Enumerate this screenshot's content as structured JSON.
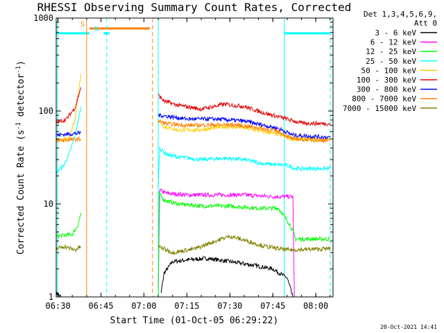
{
  "chart_data": {
    "type": "line",
    "title": "RHESSI Observing Summary Count Rates, Corrected",
    "xlabel": "Start Time (01-Oct-05 06:29:22)",
    "ylabel_parts": [
      "Corrected Count Rate (s",
      "-1",
      " detector",
      "-1",
      ")"
    ],
    "x_ticks": [
      "06:30",
      "06:45",
      "07:00",
      "07:15",
      "07:30",
      "07:45",
      "08:00"
    ],
    "y_ticks": [
      "1",
      "10",
      "100",
      "1000"
    ],
    "y_scale": "log",
    "ylim": [
      1,
      1000
    ],
    "xlim": [
      "06:29:22",
      "08:06"
    ],
    "legend_header": [
      "Det 1,3,4,5,6,9,",
      "Att 0"
    ],
    "legend_position": "right",
    "series": [
      {
        "name": "3 - 6 keV",
        "color": "#000000",
        "segments": [
          [
            [
              "06:29:30",
              1.1
            ],
            [
              "06:31",
              1.0
            ]
          ],
          [
            [
              "07:06",
              1.1
            ],
            [
              "07:07",
              1.8
            ],
            [
              "07:10",
              2.4
            ],
            [
              "07:15",
              2.5
            ],
            [
              "07:22",
              2.6
            ],
            [
              "07:30",
              2.4
            ],
            [
              "07:38",
              2.2
            ],
            [
              "07:45",
              2.0
            ],
            [
              "07:50",
              1.6
            ],
            [
              "07:52",
              1.0
            ]
          ]
        ]
      },
      {
        "name": "6 - 12 keV",
        "color": "#ff00ff",
        "segments": [
          [
            [
              "07:05",
              1.2
            ],
            [
              "07:05:30",
              14
            ],
            [
              "07:08",
              13
            ],
            [
              "07:15",
              12.5
            ],
            [
              "07:25",
              12.5
            ],
            [
              "07:35",
              12.5
            ],
            [
              "07:45",
              12
            ],
            [
              "07:52",
              12
            ],
            [
              "07:52:30",
              1.0
            ]
          ]
        ]
      },
      {
        "name": "12 - 25 keV",
        "color": "#00ff00",
        "segments": [
          [
            [
              "06:29:30",
              4.5
            ],
            [
              "06:35",
              4.7
            ],
            [
              "06:37",
              6.0
            ],
            [
              "06:38",
              8.0
            ]
          ],
          [
            [
              "07:05",
              1.0
            ],
            [
              "07:05:20",
              13
            ],
            [
              "07:07",
              11
            ],
            [
              "07:12",
              10
            ],
            [
              "07:20",
              9.5
            ],
            [
              "07:30",
              9.5
            ],
            [
              "07:40",
              9.0
            ],
            [
              "07:47",
              9.0
            ],
            [
              "07:51",
              6.0
            ],
            [
              "07:53",
              4.2
            ],
            [
              "08:05",
              4.2
            ]
          ]
        ]
      },
      {
        "name": "25 - 50 keV",
        "color": "#00ffff",
        "segments": [
          [
            [
              "06:29:30",
              22
            ],
            [
              "06:32",
              26
            ],
            [
              "06:34",
              35
            ],
            [
              "06:36",
              55
            ],
            [
              "06:38",
              110
            ]
          ],
          [
            [
              "07:05",
              15
            ],
            [
              "07:05:30",
              40
            ],
            [
              "07:08",
              34
            ],
            [
              "07:12",
              32
            ],
            [
              "07:20",
              30
            ],
            [
              "07:28",
              31
            ],
            [
              "07:35",
              30
            ],
            [
              "07:42",
              27
            ],
            [
              "07:50",
              26
            ],
            [
              "07:53",
              24
            ],
            [
              "08:05",
              24
            ]
          ]
        ]
      },
      {
        "name": "50 - 100 keV",
        "color": "#ffcc00",
        "segments": [
          [
            [
              "06:29:30",
              48
            ],
            [
              "06:34",
              50
            ],
            [
              "06:36",
              85
            ],
            [
              "06:38",
              250
            ]
          ],
          [
            [
              "07:05",
              80
            ],
            [
              "07:07",
              68
            ],
            [
              "07:12",
              62
            ],
            [
              "07:20",
              63
            ],
            [
              "07:28",
              68
            ],
            [
              "07:35",
              66
            ],
            [
              "07:42",
              60
            ],
            [
              "07:48",
              55
            ],
            [
              "07:52",
              50
            ],
            [
              "08:05",
              49
            ]
          ]
        ]
      },
      {
        "name": "100 - 300 keV",
        "color": "#e00000",
        "segments": [
          [
            [
              "06:29:30",
              75
            ],
            [
              "06:33",
              82
            ],
            [
              "06:36",
              110
            ],
            [
              "06:38",
              180
            ]
          ],
          [
            [
              "07:05",
              148
            ],
            [
              "07:07",
              128
            ],
            [
              "07:12",
              115
            ],
            [
              "07:20",
              105
            ],
            [
              "07:28",
              118
            ],
            [
              "07:35",
              112
            ],
            [
              "07:42",
              95
            ],
            [
              "07:50",
              82
            ],
            [
              "07:55",
              74
            ],
            [
              "08:05",
              73
            ]
          ]
        ]
      },
      {
        "name": "300 - 800 keV",
        "color": "#0000ff",
        "segments": [
          [
            [
              "06:29:30",
              55
            ],
            [
              "06:38",
              58
            ]
          ],
          [
            [
              "07:05",
              90
            ],
            [
              "07:08",
              88
            ],
            [
              "07:15",
              82
            ],
            [
              "07:25",
              82
            ],
            [
              "07:35",
              78
            ],
            [
              "07:42",
              70
            ],
            [
              "07:47",
              65
            ],
            [
              "07:52",
              55
            ],
            [
              "08:05",
              52
            ]
          ]
        ]
      },
      {
        "name": "800 - 7000 keV",
        "color": "#ff7f00",
        "segments": [
          [
            [
              "06:29:30",
              48
            ],
            [
              "06:38",
              50
            ]
          ],
          [
            [
              "07:05",
              78
            ],
            [
              "07:08",
              73
            ],
            [
              "07:15",
              70
            ],
            [
              "07:25",
              71
            ],
            [
              "07:32",
              71
            ],
            [
              "07:40",
              66
            ],
            [
              "07:47",
              60
            ],
            [
              "07:52",
              50
            ],
            [
              "08:05",
              48
            ]
          ]
        ]
      },
      {
        "name": "7000 - 15000 keV",
        "color": "#808000",
        "segments": [
          [
            [
              "06:29:30",
              3.3
            ],
            [
              "06:32",
              3.5
            ],
            [
              "06:36",
              3.2
            ],
            [
              "06:38",
              3.5
            ]
          ],
          [
            [
              "07:05",
              3.5
            ],
            [
              "07:10",
              3.0
            ],
            [
              "07:18",
              3.3
            ],
            [
              "07:25",
              4.0
            ],
            [
              "07:30",
              4.5
            ],
            [
              "07:36",
              4.0
            ],
            [
              "07:42",
              3.5
            ],
            [
              "07:50",
              3.2
            ],
            [
              "08:05",
              3.3
            ]
          ]
        ]
      }
    ],
    "flag_bars": [
      {
        "label": "S",
        "color": "#ff7f00",
        "start": "06:41",
        "end": "07:02"
      },
      {
        "label": "N",
        "color": "#00ffff",
        "start": "06:29:30",
        "end": "06:41"
      },
      {
        "label": "",
        "color": "#00ffff",
        "start": "06:46",
        "end": "06:48"
      },
      {
        "label": "",
        "color": "#00ffff",
        "start": "07:49",
        "end": "08:05"
      }
    ],
    "vertical_lines": [
      {
        "time": "06:29:50",
        "color": "#00ffff",
        "style": "solid"
      },
      {
        "time": "06:40",
        "color": "#ff7f00",
        "style": "solid"
      },
      {
        "time": "06:47",
        "color": "#00ffff",
        "style": "dashed"
      },
      {
        "time": "07:03",
        "color": "#ff7f00",
        "style": "dashed"
      },
      {
        "time": "07:05",
        "color": "#00ffff",
        "style": "solid"
      },
      {
        "time": "07:49",
        "color": "#00ffff",
        "style": "solid"
      },
      {
        "time": "08:05",
        "color": "#00ffff",
        "style": "dashed"
      }
    ],
    "footer_timestamp": "20-Oct-2021 14:41"
  }
}
